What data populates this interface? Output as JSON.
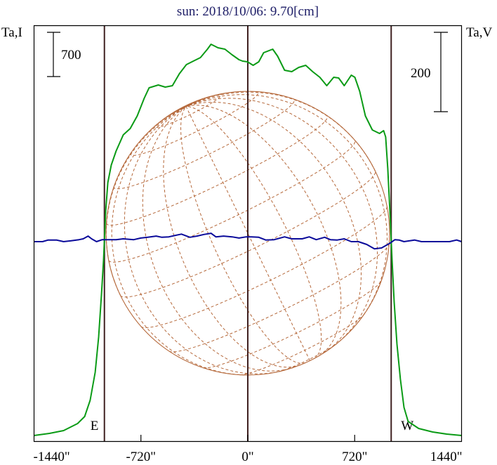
{
  "chart_data": {
    "type": "line",
    "title": "sun: 2018/10/06: 9.70[cm]",
    "left_axis_label": "Ta,I",
    "right_axis_label": "Ta,V",
    "left_scale_bar": {
      "label": "700",
      "value": 700
    },
    "right_scale_bar": {
      "label": "200",
      "value": 200
    },
    "xlim": [
      -1440,
      1440
    ],
    "x_ticks": [
      {
        "value": -1440,
        "label": "-1440\""
      },
      {
        "value": -720,
        "label": "-720\""
      },
      {
        "value": 0,
        "label": "0\""
      },
      {
        "value": 720,
        "label": "720\""
      },
      {
        "value": 1440,
        "label": "1440\""
      }
    ],
    "markers": [
      {
        "value": -966,
        "label": "E"
      },
      {
        "value": 0,
        "label": ""
      },
      {
        "value": 966,
        "label": "W"
      }
    ],
    "solar_disk": {
      "radius_arcsec": 955,
      "p_angle_deg": 26,
      "b0_deg": 6.6,
      "grid_step_deg": 15
    },
    "colors": {
      "intensity": "#0b9b16",
      "polarization": "#0a0a9a",
      "markers": "#3f2020",
      "disk": "#b5683a",
      "frame": "#000000"
    },
    "series": [
      {
        "name": "Ta,I",
        "axis": "left",
        "points": [
          [
            -1440,
            89
          ],
          [
            -1336,
            122
          ],
          [
            -1241,
            167
          ],
          [
            -1147,
            278
          ],
          [
            -1099,
            389
          ],
          [
            -1062,
            644
          ],
          [
            -1028,
            1089
          ],
          [
            -1005,
            1644
          ],
          [
            -986,
            2311
          ],
          [
            -972,
            2867
          ],
          [
            -957,
            3644
          ],
          [
            -943,
            4089
          ],
          [
            -920,
            4367
          ],
          [
            -887,
            4589
          ],
          [
            -839,
            4844
          ],
          [
            -792,
            4944
          ],
          [
            -745,
            5144
          ],
          [
            -698,
            5422
          ],
          [
            -665,
            5589
          ],
          [
            -603,
            5633
          ],
          [
            -556,
            5600
          ],
          [
            -508,
            5622
          ],
          [
            -461,
            5811
          ],
          [
            -414,
            5956
          ],
          [
            -367,
            6011
          ],
          [
            -319,
            6067
          ],
          [
            -272,
            6200
          ],
          [
            -248,
            6278
          ],
          [
            -201,
            6222
          ],
          [
            -154,
            6200
          ],
          [
            -106,
            6111
          ],
          [
            -59,
            6033
          ],
          [
            -35,
            6011
          ],
          [
            -2,
            6000
          ],
          [
            36,
            5944
          ],
          [
            74,
            6000
          ],
          [
            107,
            6144
          ],
          [
            168,
            6200
          ],
          [
            201,
            6089
          ],
          [
            248,
            5867
          ],
          [
            296,
            5844
          ],
          [
            343,
            5911
          ],
          [
            390,
            5944
          ],
          [
            437,
            5844
          ],
          [
            485,
            5756
          ],
          [
            532,
            5622
          ],
          [
            579,
            5756
          ],
          [
            612,
            5744
          ],
          [
            650,
            5622
          ],
          [
            697,
            5789
          ],
          [
            721,
            5756
          ],
          [
            754,
            5533
          ],
          [
            792,
            5144
          ],
          [
            839,
            4922
          ],
          [
            887,
            4867
          ],
          [
            915,
            4911
          ],
          [
            929,
            4811
          ],
          [
            943,
            4311
          ],
          [
            957,
            3644
          ],
          [
            972,
            2867
          ],
          [
            986,
            2200
          ],
          [
            1005,
            1533
          ],
          [
            1028,
            978
          ],
          [
            1052,
            533
          ],
          [
            1080,
            311
          ],
          [
            1151,
            200
          ],
          [
            1245,
            144
          ],
          [
            1340,
            111
          ],
          [
            1440,
            89
          ]
        ]
      },
      {
        "name": "Ta,V",
        "axis": "right",
        "points": [
          [
            -1440,
            0
          ],
          [
            -1383,
            0
          ],
          [
            -1345,
            4
          ],
          [
            -1289,
            4
          ],
          [
            -1241,
            0
          ],
          [
            -1194,
            2
          ],
          [
            -1137,
            5
          ],
          [
            -1109,
            7
          ],
          [
            -1076,
            14
          ],
          [
            -1052,
            7
          ],
          [
            -1019,
            0
          ],
          [
            -981,
            5
          ],
          [
            -934,
            5
          ],
          [
            -887,
            5
          ],
          [
            -839,
            7
          ],
          [
            -768,
            5
          ],
          [
            -721,
            9
          ],
          [
            -674,
            11
          ],
          [
            -617,
            14
          ],
          [
            -579,
            11
          ],
          [
            -532,
            12
          ],
          [
            -485,
            16
          ],
          [
            -447,
            19
          ],
          [
            -390,
            11
          ],
          [
            -343,
            14
          ],
          [
            -296,
            18
          ],
          [
            -248,
            21
          ],
          [
            -215,
            12
          ],
          [
            -163,
            14
          ],
          [
            -106,
            12
          ],
          [
            -59,
            9
          ],
          [
            -11,
            12
          ],
          [
            26,
            12
          ],
          [
            74,
            11
          ],
          [
            121,
            4
          ],
          [
            178,
            5
          ],
          [
            248,
            12
          ],
          [
            296,
            7
          ],
          [
            366,
            7
          ],
          [
            414,
            12
          ],
          [
            461,
            5
          ],
          [
            518,
            11
          ],
          [
            556,
            5
          ],
          [
            603,
            4
          ],
          [
            650,
            7
          ],
          [
            697,
            0
          ],
          [
            745,
            0
          ],
          [
            801,
            -7
          ],
          [
            853,
            -18
          ],
          [
            901,
            -16
          ],
          [
            924,
            -11
          ],
          [
            957,
            -4
          ],
          [
            991,
            5
          ],
          [
            1019,
            4
          ],
          [
            1052,
            0
          ],
          [
            1123,
            4
          ],
          [
            1170,
            0
          ],
          [
            1359,
            0
          ],
          [
            1407,
            4
          ],
          [
            1440,
            0
          ]
        ]
      }
    ]
  }
}
